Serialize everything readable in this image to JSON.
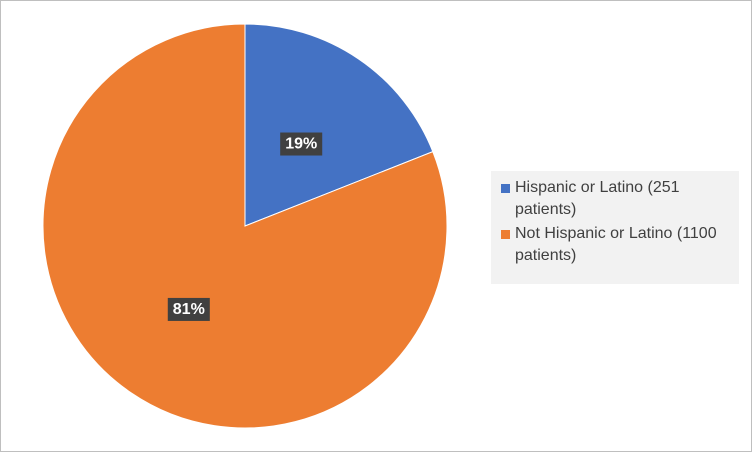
{
  "chart_data": {
    "type": "pie",
    "series": [
      {
        "name": "Hispanic or Latino (251 patients)",
        "color": "#4472c4",
        "values": [
          19
        ],
        "value_labels": [
          "19%"
        ]
      },
      {
        "name": "Not Hispanic or Latino (1100 patients)",
        "color": "#ed7d31",
        "values": [
          81
        ],
        "value_labels": [
          "81%"
        ]
      }
    ]
  }
}
